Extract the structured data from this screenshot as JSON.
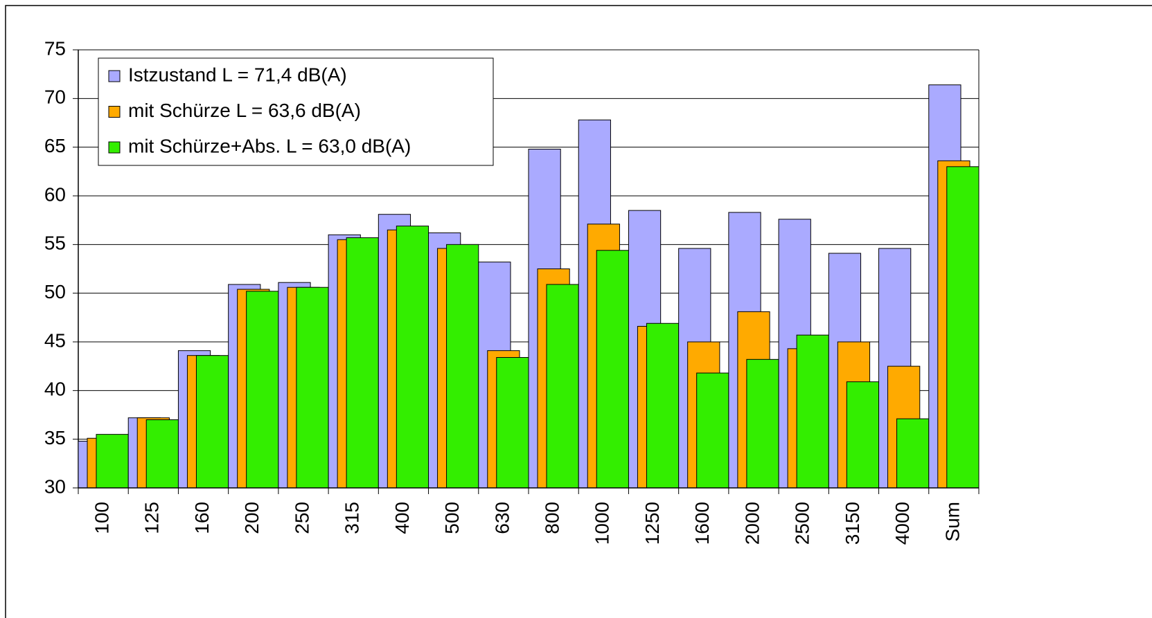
{
  "chart_data": {
    "type": "bar",
    "categories": [
      "100",
      "125",
      "160",
      "200",
      "250",
      "315",
      "400",
      "500",
      "630",
      "800",
      "1000",
      "1250",
      "1600",
      "2000",
      "2500",
      "3150",
      "4000",
      "Sum"
    ],
    "series": [
      {
        "name": "Istzustand L = 71,4 dB(A)",
        "color": "#aaaaff",
        "values": [
          34.8,
          37.2,
          44.1,
          50.9,
          51.1,
          56.0,
          58.1,
          56.2,
          53.2,
          64.8,
          67.8,
          58.5,
          54.6,
          58.3,
          57.6,
          54.1,
          54.6,
          71.4
        ]
      },
      {
        "name": "mit Schürze L = 63,6 dB(A)",
        "color": "#ffaa00",
        "values": [
          35.1,
          37.2,
          43.6,
          50.4,
          50.6,
          55.5,
          56.5,
          54.6,
          44.1,
          52.5,
          57.1,
          46.6,
          45.0,
          48.1,
          44.3,
          45.0,
          42.5,
          63.6
        ]
      },
      {
        "name": "mit Schürze+Abs. L = 63,0 dB(A)",
        "color": "#33ee00",
        "values": [
          35.5,
          37.0,
          43.6,
          50.2,
          50.6,
          55.7,
          56.9,
          55.0,
          43.4,
          50.9,
          54.4,
          46.9,
          41.8,
          43.2,
          45.7,
          40.9,
          37.1,
          63.0
        ]
      }
    ],
    "ylim": [
      30,
      75
    ],
    "yticks": [
      30,
      35,
      40,
      45,
      50,
      55,
      60,
      65,
      70,
      75
    ],
    "grid": true,
    "legend": "upper left"
  }
}
